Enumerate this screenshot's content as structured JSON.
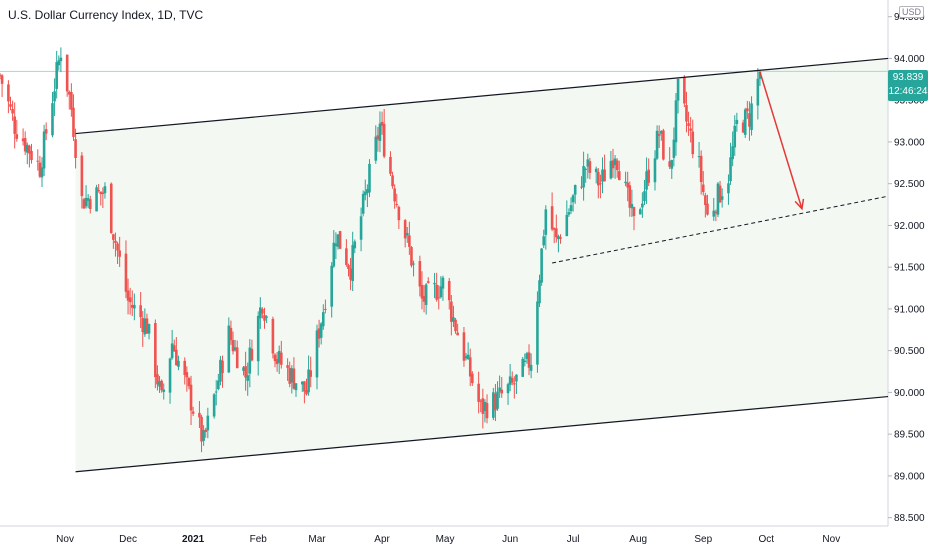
{
  "header": {
    "title": "U.S. Dollar Currency Index, 1D, TVC"
  },
  "price_axis": {
    "unit": "USD"
  },
  "last_price": {
    "value": "93.839",
    "countdown": "12:46:24",
    "color": "#26a69a"
  },
  "colors": {
    "up": "#26a69a",
    "down": "#ef5350",
    "channel_fill": "#f3f8f3",
    "trend_line": "#131722",
    "arrow": "#e53935",
    "last_price_line": "#a7d8d3"
  },
  "chart_data": {
    "type": "candlestick",
    "title": "U.S. Dollar Currency Index, 1D, TVC",
    "xlabel": "",
    "ylabel": "",
    "ylim": [
      88.4,
      94.7
    ],
    "yticks": [
      "88.500",
      "89.000",
      "89.500",
      "90.000",
      "90.500",
      "91.000",
      "91.500",
      "92.000",
      "92.500",
      "93.000",
      "93.500",
      "94.000",
      "94.500"
    ],
    "xtick_labels": [
      "Nov",
      "Dec",
      "2021",
      "Feb",
      "Mar",
      "Apr",
      "May",
      "Jun",
      "Jul",
      "Aug",
      "Sep",
      "Oct",
      "Nov"
    ],
    "x_domain": [
      "2020-10-01",
      "2021-11-28"
    ],
    "anchors": [
      [
        "2020-10-01",
        93.8
      ],
      [
        "2020-10-08",
        93.2
      ],
      [
        "2020-10-20",
        92.7
      ],
      [
        "2020-10-30",
        94.1
      ],
      [
        "2020-11-04",
        93.4
      ],
      [
        "2020-11-09",
        92.3
      ],
      [
        "2020-11-20",
        92.4
      ],
      [
        "2020-12-01",
        91.1
      ],
      [
        "2020-12-10",
        90.8
      ],
      [
        "2020-12-17",
        89.9
      ],
      [
        "2020-12-22",
        90.6
      ],
      [
        "2020-12-31",
        89.9
      ],
      [
        "2021-01-06",
        89.4
      ],
      [
        "2021-01-18",
        90.7
      ],
      [
        "2021-01-26",
        90.2
      ],
      [
        "2021-02-03",
        91.1
      ],
      [
        "2021-02-10",
        90.4
      ],
      [
        "2021-02-24",
        90.0
      ],
      [
        "2021-03-04",
        91.0
      ],
      [
        "2021-03-10",
        91.9
      ],
      [
        "2021-03-17",
        91.5
      ],
      [
        "2021-03-31",
        93.2
      ],
      [
        "2021-04-07",
        92.4
      ],
      [
        "2021-04-20",
        91.1
      ],
      [
        "2021-04-30",
        91.3
      ],
      [
        "2021-05-06",
        90.8
      ],
      [
        "2021-05-18",
        89.8
      ],
      [
        "2021-05-25",
        89.9
      ],
      [
        "2021-06-03",
        90.1
      ],
      [
        "2021-06-11",
        90.4
      ],
      [
        "2021-06-18",
        92.2
      ],
      [
        "2021-06-23",
        91.8
      ],
      [
        "2021-07-07",
        92.7
      ],
      [
        "2021-07-14",
        92.5
      ],
      [
        "2021-07-21",
        92.9
      ],
      [
        "2021-07-30",
        92.0
      ],
      [
        "2021-08-11",
        93.1
      ],
      [
        "2021-08-16",
        92.6
      ],
      [
        "2021-08-20",
        93.6
      ],
      [
        "2021-08-30",
        92.7
      ],
      [
        "2021-09-03",
        92.1
      ],
      [
        "2021-09-13",
        92.6
      ],
      [
        "2021-09-17",
        93.2
      ],
      [
        "2021-09-23",
        93.3
      ],
      [
        "2021-09-28",
        93.84
      ]
    ],
    "annotations": {
      "channel_upper": [
        [
          "2020-11-06",
          93.1
        ],
        [
          "2021-11-28",
          94.0
        ]
      ],
      "channel_lower": [
        [
          "2020-11-06",
          89.05
        ],
        [
          "2021-11-28",
          89.95
        ]
      ],
      "support_dashed": [
        [
          "2021-06-21",
          91.55
        ],
        [
          "2021-11-28",
          92.35
        ]
      ],
      "arrow": [
        [
          "2021-09-28",
          93.84
        ],
        [
          "2021-10-18",
          92.2
        ]
      ],
      "last_price": 93.839
    }
  }
}
